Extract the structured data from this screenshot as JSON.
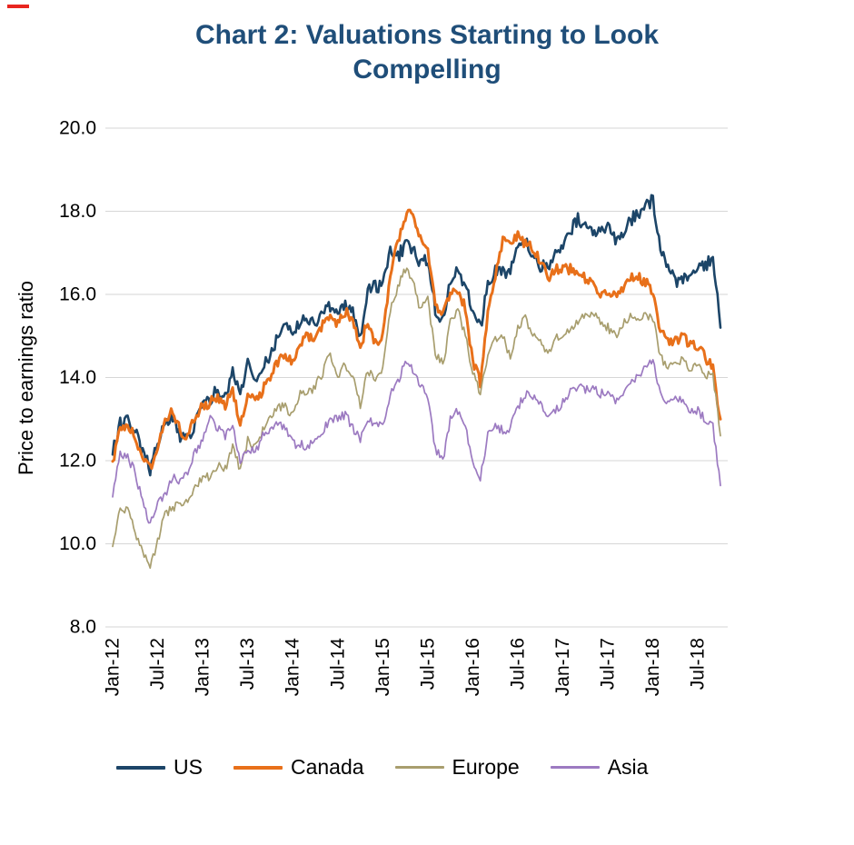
{
  "page": {
    "corner_mark_color": "#e8251f",
    "title_color": "#1f4e79"
  },
  "chart_data": {
    "type": "line",
    "title": "Chart 2: Valuations Starting to Look Compelling",
    "ylabel": "Price to earnings ratio",
    "ylim": [
      8.0,
      20.0
    ],
    "yticks": [
      8.0,
      10.0,
      12.0,
      14.0,
      16.0,
      18.0,
      20.0
    ],
    "x_unit": "month",
    "x_start": "Jan-12",
    "x_end": "Oct-18",
    "x_tick_every": 6,
    "x_tick_labels": [
      "Jan-12",
      "Jul-12",
      "Jan-13",
      "Jul-13",
      "Jan-14",
      "Jul-14",
      "Jan-15",
      "Jul-15",
      "Jan-16",
      "Jul-16",
      "Jan-17",
      "Jul-17",
      "Jan-18",
      "Jul-18"
    ],
    "grid": "horizontal",
    "legend_position": "bottom",
    "series": [
      {
        "name": "US",
        "color": "#1c4568",
        "width": 2.6,
        "values": [
          12.2,
          12.9,
          13.0,
          12.7,
          12.2,
          11.8,
          12.4,
          12.9,
          13.1,
          12.6,
          12.5,
          12.9,
          13.4,
          13.5,
          13.7,
          13.5,
          14.2,
          13.6,
          14.4,
          14.0,
          14.3,
          14.5,
          15.0,
          15.2,
          15.1,
          15.3,
          15.4,
          15.3,
          15.5,
          15.7,
          15.5,
          15.8,
          15.6,
          14.9,
          16.1,
          16.2,
          16.2,
          17.0,
          16.9,
          17.2,
          17.1,
          16.7,
          16.9,
          15.6,
          15.4,
          16.3,
          16.6,
          16.2,
          15.6,
          15.2,
          16.2,
          16.6,
          16.5,
          16.6,
          17.2,
          17.3,
          17.0,
          16.7,
          16.6,
          17.0,
          17.2,
          17.5,
          17.8,
          17.6,
          17.5,
          17.5,
          17.6,
          17.3,
          17.5,
          17.8,
          17.9,
          18.1,
          18.3,
          17.1,
          16.6,
          16.3,
          16.4,
          16.5,
          16.6,
          16.7,
          16.9,
          15.2
        ]
      },
      {
        "name": "Canada",
        "color": "#e8701a",
        "width": 3.0,
        "values": [
          11.9,
          12.8,
          12.9,
          12.6,
          12.1,
          11.8,
          12.4,
          12.9,
          13.2,
          12.7,
          12.6,
          13.1,
          13.3,
          13.4,
          13.5,
          13.3,
          13.7,
          12.8,
          13.6,
          13.4,
          13.7,
          14.0,
          14.4,
          14.5,
          14.4,
          14.8,
          15.0,
          15.0,
          15.3,
          15.5,
          15.3,
          15.6,
          15.4,
          14.7,
          15.4,
          14.8,
          15.0,
          16.5,
          17.3,
          17.9,
          18.0,
          17.3,
          17.1,
          15.8,
          15.5,
          16.1,
          16.0,
          15.7,
          14.4,
          13.9,
          15.5,
          16.4,
          17.3,
          17.2,
          17.4,
          17.2,
          17.1,
          16.8,
          16.4,
          16.6,
          16.6,
          16.6,
          16.5,
          16.4,
          16.2,
          16.0,
          16.1,
          15.9,
          16.1,
          16.4,
          16.4,
          16.3,
          16.1,
          15.1,
          14.9,
          14.9,
          15.0,
          14.8,
          14.7,
          14.5,
          14.2,
          13.0
        ]
      },
      {
        "name": "Europe",
        "color": "#a89e6e",
        "width": 1.7,
        "values": [
          9.9,
          10.9,
          10.8,
          10.3,
          9.8,
          9.4,
          10.1,
          10.7,
          10.9,
          10.9,
          11.0,
          11.4,
          11.6,
          11.6,
          11.9,
          11.8,
          12.3,
          11.8,
          12.5,
          12.3,
          12.7,
          13.0,
          13.3,
          13.3,
          13.1,
          13.6,
          13.6,
          13.8,
          14.1,
          14.6,
          14.0,
          14.3,
          14.0,
          13.3,
          14.2,
          13.9,
          14.2,
          15.6,
          16.2,
          16.6,
          16.4,
          15.6,
          15.9,
          14.6,
          14.3,
          15.3,
          15.6,
          15.0,
          14.1,
          13.6,
          14.5,
          14.9,
          15.0,
          14.5,
          15.2,
          15.4,
          15.0,
          14.9,
          14.5,
          15.0,
          15.0,
          15.2,
          15.3,
          15.5,
          15.6,
          15.3,
          15.2,
          15.0,
          15.3,
          15.5,
          15.4,
          15.5,
          15.4,
          14.5,
          14.2,
          14.4,
          14.4,
          14.2,
          14.3,
          14.0,
          14.1,
          12.6
        ]
      },
      {
        "name": "Asia",
        "color": "#9c7ac1",
        "width": 1.7,
        "values": [
          11.1,
          12.2,
          12.1,
          11.7,
          11.0,
          10.5,
          11.0,
          11.2,
          11.6,
          11.5,
          11.7,
          12.2,
          12.5,
          13.0,
          12.8,
          12.6,
          12.9,
          11.9,
          12.3,
          12.2,
          12.6,
          12.8,
          12.9,
          12.8,
          12.4,
          12.4,
          12.3,
          12.5,
          12.7,
          13.0,
          13.0,
          13.1,
          12.8,
          12.5,
          13.0,
          12.8,
          12.9,
          13.6,
          13.9,
          14.4,
          14.2,
          13.8,
          13.5,
          12.3,
          12.0,
          13.0,
          13.2,
          12.8,
          12.0,
          11.6,
          12.6,
          12.9,
          12.7,
          12.8,
          13.3,
          13.6,
          13.5,
          13.4,
          13.0,
          13.2,
          13.4,
          13.7,
          13.8,
          13.7,
          13.8,
          13.6,
          13.7,
          13.4,
          13.6,
          13.9,
          14.0,
          14.2,
          14.4,
          13.6,
          13.4,
          13.5,
          13.4,
          13.2,
          13.2,
          13.0,
          12.8,
          11.4
        ]
      }
    ]
  }
}
